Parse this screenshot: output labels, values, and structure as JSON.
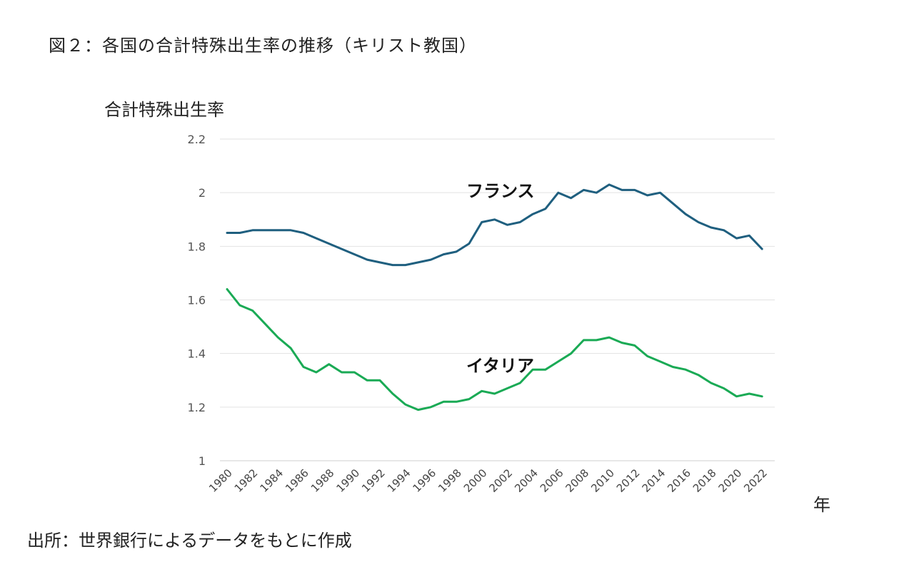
{
  "figure": {
    "title": "図２：各国の合計特殊出生率の推移（キリスト教国）",
    "source": "出所：世界銀行によるデータをもとに作成"
  },
  "chart_data": {
    "type": "line",
    "ylabel": "合計特殊出生率",
    "xlabel": "年",
    "ylim": [
      1,
      2.2
    ],
    "y_ticks": [
      "2.2",
      "2",
      "1.8",
      "1.6",
      "1.4",
      "1.2",
      "1"
    ],
    "x_tick_labels": [
      "1980",
      "1982",
      "1984",
      "1986",
      "1988",
      "1990",
      "1992",
      "1994",
      "1996",
      "1998",
      "2000",
      "2002",
      "2004",
      "2006",
      "2008",
      "2010",
      "2012",
      "2014",
      "2016",
      "2018",
      "2020",
      "2022"
    ],
    "grid": true,
    "legend": "none",
    "x": [
      1980,
      1981,
      1982,
      1983,
      1984,
      1985,
      1986,
      1987,
      1988,
      1989,
      1990,
      1991,
      1992,
      1993,
      1994,
      1995,
      1996,
      1997,
      1998,
      1999,
      2000,
      2001,
      2002,
      2003,
      2004,
      2005,
      2006,
      2007,
      2008,
      2009,
      2010,
      2011,
      2012,
      2013,
      2014,
      2015,
      2016,
      2017,
      2018,
      2019,
      2020,
      2021,
      2022
    ],
    "series": [
      {
        "name": "フランス",
        "color": "#1f5f7f",
        "values": [
          1.85,
          1.85,
          1.86,
          1.86,
          1.86,
          1.86,
          1.85,
          1.83,
          1.81,
          1.79,
          1.77,
          1.75,
          1.74,
          1.73,
          1.73,
          1.74,
          1.75,
          1.77,
          1.78,
          1.81,
          1.89,
          1.9,
          1.88,
          1.89,
          1.92,
          1.94,
          2.0,
          1.98,
          2.01,
          2.0,
          2.03,
          2.01,
          2.01,
          1.99,
          2.0,
          1.96,
          1.92,
          1.89,
          1.87,
          1.86,
          1.83,
          1.84,
          1.79
        ]
      },
      {
        "name": "イタリア",
        "color": "#1aaa55",
        "values": [
          1.64,
          1.58,
          1.56,
          1.51,
          1.46,
          1.42,
          1.35,
          1.33,
          1.36,
          1.33,
          1.33,
          1.3,
          1.3,
          1.25,
          1.21,
          1.19,
          1.2,
          1.22,
          1.22,
          1.23,
          1.26,
          1.25,
          1.27,
          1.29,
          1.34,
          1.34,
          1.37,
          1.4,
          1.45,
          1.45,
          1.46,
          1.44,
          1.43,
          1.39,
          1.37,
          1.35,
          1.34,
          1.32,
          1.29,
          1.27,
          1.24,
          1.25,
          1.24
        ]
      }
    ]
  }
}
